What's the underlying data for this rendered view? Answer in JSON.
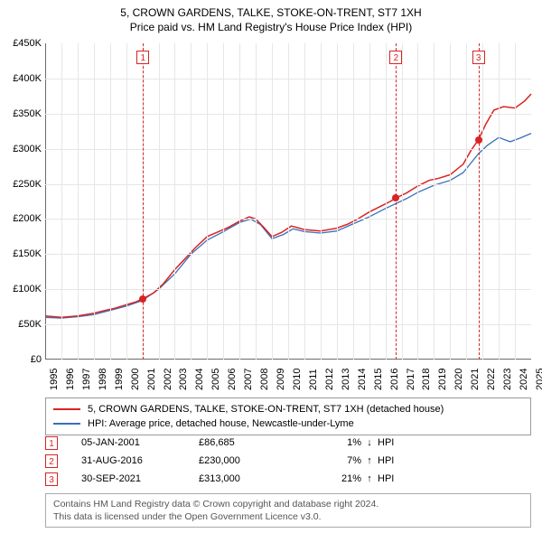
{
  "title": {
    "line1": "5, CROWN GARDENS, TALKE, STOKE-ON-TRENT, ST7 1XH",
    "line2": "Price paid vs. HM Land Registry's House Price Index (HPI)",
    "fontsize": 12
  },
  "chart": {
    "type": "line",
    "background_color": "#ffffff",
    "grid_color": "#e6e6e6",
    "axis_color": "#6b6b6b",
    "x": {
      "min": 1995,
      "max": 2025,
      "ticks": [
        1995,
        1996,
        1997,
        1998,
        1999,
        2000,
        2001,
        2002,
        2003,
        2004,
        2005,
        2006,
        2007,
        2008,
        2009,
        2010,
        2011,
        2012,
        2013,
        2014,
        2015,
        2016,
        2017,
        2018,
        2019,
        2020,
        2021,
        2022,
        2023,
        2024,
        2025
      ]
    },
    "y": {
      "min": 0,
      "max": 450000,
      "tick_step": 50000,
      "prefix": "£",
      "suffix": "K",
      "divisor": 1000
    },
    "series": {
      "property": {
        "label": "5, CROWN GARDENS, TALKE, STOKE-ON-TRENT, ST7 1XH (detached house)",
        "color": "#d92424",
        "width": 1.5,
        "points": [
          [
            1995.0,
            62000
          ],
          [
            1996.0,
            60000
          ],
          [
            1997.0,
            62000
          ],
          [
            1998.0,
            66000
          ],
          [
            1998.7,
            70000
          ],
          [
            1999.3,
            73000
          ],
          [
            2000.0,
            78000
          ],
          [
            2000.6,
            82000
          ],
          [
            2001.04,
            86685
          ],
          [
            2001.7,
            95000
          ],
          [
            2002.3,
            108000
          ],
          [
            2003.0,
            128000
          ],
          [
            2003.7,
            145000
          ],
          [
            2004.3,
            160000
          ],
          [
            2005.0,
            175000
          ],
          [
            2005.7,
            182000
          ],
          [
            2006.3,
            188000
          ],
          [
            2007.0,
            197000
          ],
          [
            2007.6,
            203000
          ],
          [
            2008.0,
            200000
          ],
          [
            2008.5,
            188000
          ],
          [
            2009.0,
            175000
          ],
          [
            2009.6,
            181000
          ],
          [
            2010.2,
            190000
          ],
          [
            2011.0,
            185000
          ],
          [
            2012.0,
            183000
          ],
          [
            2013.0,
            187000
          ],
          [
            2013.7,
            193000
          ],
          [
            2014.3,
            200000
          ],
          [
            2015.0,
            210000
          ],
          [
            2015.7,
            218000
          ],
          [
            2016.3,
            225000
          ],
          [
            2016.66,
            230000
          ],
          [
            2017.3,
            237000
          ],
          [
            2018.0,
            247000
          ],
          [
            2018.7,
            255000
          ],
          [
            2019.3,
            258000
          ],
          [
            2020.0,
            263000
          ],
          [
            2020.8,
            278000
          ],
          [
            2021.3,
            298000
          ],
          [
            2021.75,
            313000
          ],
          [
            2022.2,
            335000
          ],
          [
            2022.7,
            355000
          ],
          [
            2023.3,
            360000
          ],
          [
            2024.0,
            358000
          ],
          [
            2024.6,
            368000
          ],
          [
            2025.0,
            378000
          ]
        ]
      },
      "hpi": {
        "label": "HPI: Average price, detached house, Newcastle-under-Lyme",
        "color": "#3a6fb7",
        "width": 1.3,
        "points": [
          [
            1995.0,
            60000
          ],
          [
            1996.0,
            59000
          ],
          [
            1997.0,
            61000
          ],
          [
            1998.0,
            64000
          ],
          [
            1999.0,
            70000
          ],
          [
            2000.0,
            76000
          ],
          [
            2001.0,
            84000
          ],
          [
            2002.0,
            100000
          ],
          [
            2003.0,
            122000
          ],
          [
            2004.0,
            150000
          ],
          [
            2005.0,
            170000
          ],
          [
            2006.0,
            182000
          ],
          [
            2007.0,
            195000
          ],
          [
            2007.7,
            200000
          ],
          [
            2008.3,
            192000
          ],
          [
            2009.0,
            172000
          ],
          [
            2009.7,
            178000
          ],
          [
            2010.3,
            186000
          ],
          [
            2011.0,
            182000
          ],
          [
            2012.0,
            180000
          ],
          [
            2013.0,
            183000
          ],
          [
            2014.0,
            193000
          ],
          [
            2015.0,
            203000
          ],
          [
            2016.0,
            215000
          ],
          [
            2016.66,
            222000
          ],
          [
            2017.3,
            229000
          ],
          [
            2018.0,
            238000
          ],
          [
            2019.0,
            248000
          ],
          [
            2020.0,
            255000
          ],
          [
            2020.8,
            266000
          ],
          [
            2021.4,
            283000
          ],
          [
            2021.75,
            293000
          ],
          [
            2022.3,
            305000
          ],
          [
            2023.0,
            316000
          ],
          [
            2023.7,
            310000
          ],
          [
            2024.3,
            315000
          ],
          [
            2025.0,
            322000
          ]
        ]
      }
    },
    "markers": [
      {
        "n": "1",
        "x": 2001.04,
        "y": 86685,
        "line_color": "#d92424",
        "box_color": "#d92424",
        "box_top_y": 430000
      },
      {
        "n": "2",
        "x": 2016.66,
        "y": 230000,
        "line_color": "#d92424",
        "box_color": "#d92424",
        "box_top_y": 430000
      },
      {
        "n": "3",
        "x": 2021.75,
        "y": 313000,
        "line_color": "#d92424",
        "box_color": "#d92424",
        "box_top_y": 430000
      }
    ]
  },
  "legend": {
    "rows": [
      {
        "color": "#d92424",
        "text": "5, CROWN GARDENS, TALKE, STOKE-ON-TRENT, ST7 1XH (detached house)"
      },
      {
        "color": "#3a6fb7",
        "text": "HPI: Average price, detached house, Newcastle-under-Lyme"
      }
    ]
  },
  "events": {
    "marker_color": "#d92424",
    "arrow_up": "↑",
    "arrow_down": "↓",
    "hpi_label": "HPI",
    "rows": [
      {
        "n": "1",
        "date": "05-JAN-2001",
        "price": "£86,685",
        "pct": "1%",
        "dir": "down"
      },
      {
        "n": "2",
        "date": "31-AUG-2016",
        "price": "£230,000",
        "pct": "7%",
        "dir": "up"
      },
      {
        "n": "3",
        "date": "30-SEP-2021",
        "price": "£313,000",
        "pct": "21%",
        "dir": "up"
      }
    ]
  },
  "credit": {
    "line1": "Contains HM Land Registry data © Crown copyright and database right 2024.",
    "line2": "This data is licensed under the Open Government Licence v3.0."
  }
}
